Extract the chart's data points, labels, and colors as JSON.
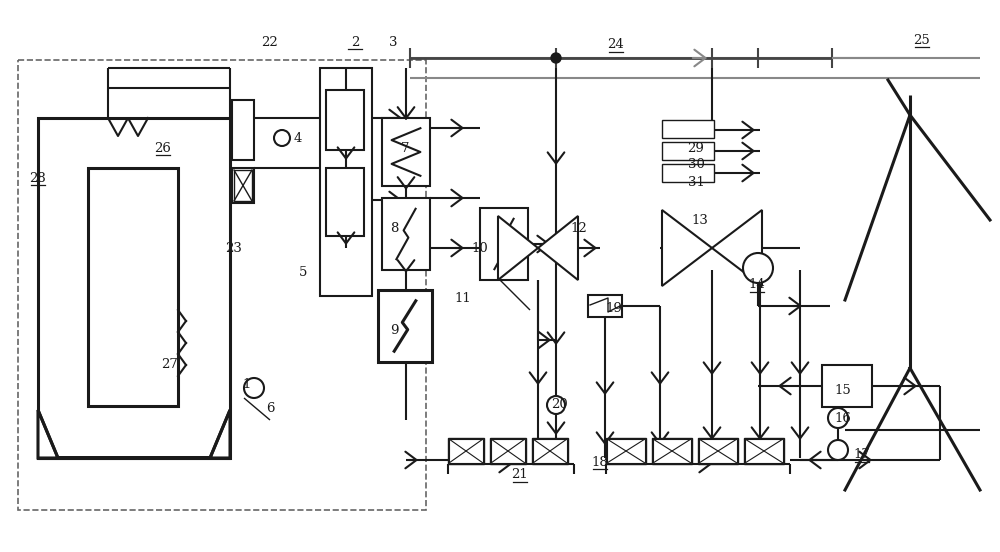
{
  "bg": "#ffffff",
  "lc": "#1a1a1a",
  "lw": 1.5,
  "lw_bold": 2.2,
  "lw_thin": 1.0,
  "fig_w": 10.0,
  "fig_h": 5.52,
  "dpi": 100,
  "underlined": [
    "2",
    "14",
    "17",
    "18",
    "21",
    "24",
    "25",
    "26",
    "28"
  ],
  "labels": [
    [
      "1",
      247,
      385
    ],
    [
      "2",
      355,
      42
    ],
    [
      "3",
      393,
      42
    ],
    [
      "4",
      298,
      138
    ],
    [
      "5",
      303,
      272
    ],
    [
      "6",
      270,
      408
    ],
    [
      "7",
      405,
      148
    ],
    [
      "8",
      394,
      228
    ],
    [
      "9",
      394,
      330
    ],
    [
      "10",
      480,
      248
    ],
    [
      "11",
      463,
      298
    ],
    [
      "12",
      579,
      228
    ],
    [
      "13",
      700,
      220
    ],
    [
      "14",
      757,
      285
    ],
    [
      "15",
      843,
      390
    ],
    [
      "16",
      843,
      418
    ],
    [
      "17",
      862,
      455
    ],
    [
      "18",
      600,
      462
    ],
    [
      "19",
      614,
      308
    ],
    [
      "20",
      560,
      405
    ],
    [
      "21",
      520,
      475
    ],
    [
      "22",
      270,
      42
    ],
    [
      "23",
      234,
      248
    ],
    [
      "24",
      616,
      45
    ],
    [
      "25",
      922,
      40
    ],
    [
      "26",
      163,
      148
    ],
    [
      "27",
      170,
      365
    ],
    [
      "28",
      38,
      178
    ],
    [
      "29",
      696,
      148
    ],
    [
      "30",
      696,
      165
    ],
    [
      "31",
      696,
      182
    ]
  ]
}
